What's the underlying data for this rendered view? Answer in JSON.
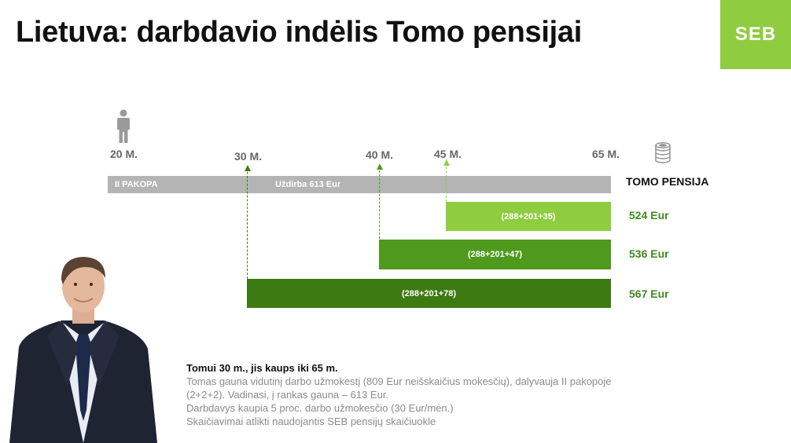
{
  "title": "Lietuva: darbdavio indėlis Tomo pensijai",
  "logo": {
    "text": "SEB",
    "color": "#8fcc3f"
  },
  "timeline": {
    "ages": [
      "20 M.",
      "30 M.",
      "40 M.",
      "45 M.",
      "65 M."
    ],
    "base_bar": {
      "label": "II PAKOPA",
      "salary_label": "Uždirba 613 Eur",
      "color": "#b4b4b4"
    },
    "column_header": "TOMO PENSIJA",
    "icons": {
      "person": "person-icon",
      "coins": "coins-stack-icon"
    },
    "scenarios": [
      {
        "start_age": "45 M.",
        "formula": "(288+201+35)",
        "result": "524 Eur",
        "color": "#8fcc3f"
      },
      {
        "start_age": "40 M.",
        "formula": "(288+201+47)",
        "result": "536 Eur",
        "color": "#4f9a1d"
      },
      {
        "start_age": "30 M.",
        "formula": "(288+201+78)",
        "result": "567 Eur",
        "color": "#3d7a12"
      }
    ]
  },
  "info": {
    "heading": "Tomui 30 m., jis kaups iki 65 m.",
    "lines": [
      "Tomas gauna vidutinį darbo užmokestį (809 Eur neišskaičius mokesčių), dalyvauja II pakopoje",
      "(2+2+2). Vadinasi, į rankas gauna – 613 Eur.",
      "Darbdavys kaupia 5 proc. darbo užmokesčio (30 Eur/mėn.)",
      "Skaičiavimai atlikti naudojantis SEB pensijų skaičiuokle"
    ]
  }
}
